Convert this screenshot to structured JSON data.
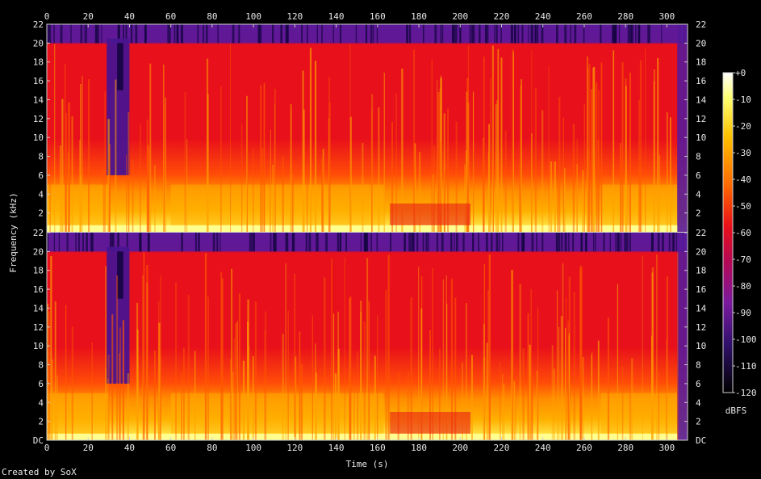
{
  "chart_data": {
    "type": "heatmap",
    "xlabel": "Time (s)",
    "ylabel": "Frequency (kHz)",
    "x_ticks": [
      "0",
      "20",
      "40",
      "60",
      "80",
      "100",
      "120",
      "140",
      "160",
      "180",
      "200",
      "220",
      "240",
      "260",
      "280",
      "300"
    ],
    "xlim": [
      0,
      310
    ],
    "channels": [
      {
        "ylim": [
          0,
          22
        ],
        "y_ticks": [
          "22",
          "20",
          "18",
          "16",
          "14",
          "12",
          "10",
          "8",
          "6",
          "4",
          "2"
        ]
      },
      {
        "ylim": [
          0,
          22
        ],
        "y_ticks": [
          "22",
          "20",
          "18",
          "16",
          "14",
          "12",
          "10",
          "8",
          "6",
          "4",
          "2",
          "DC"
        ]
      }
    ],
    "colorbar": {
      "label": "dBFS",
      "range": [
        -120,
        0
      ],
      "ticks": [
        "+0",
        "-10",
        "-20",
        "-30",
        "-40",
        "-50",
        "-60",
        "-70",
        "-80",
        "-90",
        "-100",
        "-110",
        "-120"
      ]
    },
    "colors": {
      "bright": "#ffff80",
      "yellow": "#ffc000",
      "orange": "#ff6a00",
      "red": "#e8101a",
      "crimson": "#c8084a",
      "purple": "#7a1aa0",
      "dark": "#140440"
    }
  },
  "footer": {
    "credit": "Created by SoX"
  }
}
